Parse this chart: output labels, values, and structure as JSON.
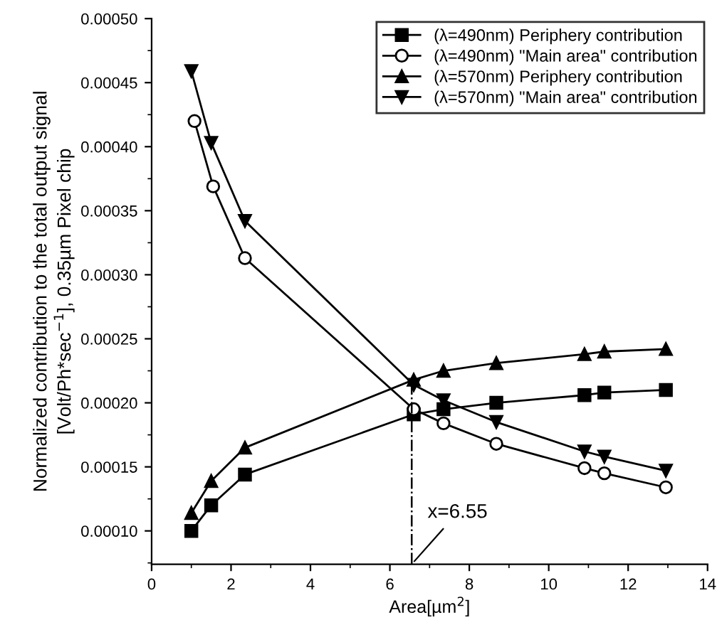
{
  "chart_data": {
    "type": "line",
    "xlabel": "Area[µm$^{2}$]",
    "ylabel": "Normalized contribution to the total output signal\n[Volt/Ph*sec$^{−1}$], 0.35µm Pixel chip",
    "x": [
      1.0,
      1.5,
      2.35,
      6.6,
      7.35,
      8.68,
      10.9,
      11.4,
      12.95
    ],
    "series": [
      {
        "name": "(λ=490nm) Periphery contribution",
        "color": "#000000",
        "marker": "square",
        "values": [
          0.0001,
          0.00012,
          0.000144,
          0.000191,
          0.000195,
          0.0002,
          0.000206,
          0.000208,
          0.00021
        ]
      },
      {
        "name": "(λ=490nm) \"Main area\" contribution",
        "color": "#000000",
        "marker": "circle",
        "x": [
          1.08,
          1.55,
          2.35,
          6.6,
          7.35,
          8.68,
          10.9,
          11.4,
          12.95
        ],
        "values": [
          0.00042,
          0.000369,
          0.000313,
          0.000195,
          0.000184,
          0.000168,
          0.000149,
          0.000145,
          0.000134
        ]
      },
      {
        "name": "(λ=570nm) Periphery contribution",
        "color": "#000000",
        "marker": "triangle",
        "values": [
          0.000114,
          0.000139,
          0.000165,
          0.000218,
          0.000225,
          0.000231,
          0.000238,
          0.00024,
          0.000242
        ]
      },
      {
        "name": "(λ=570nm) \"Main area\" contribution",
        "color": "#000000",
        "marker": "triangle_down",
        "values": [
          0.000459,
          0.000403,
          0.000342,
          0.000214,
          0.000202,
          0.000185,
          0.000162,
          0.000158,
          0.000147
        ]
      }
    ],
    "xlim": [
      0,
      14
    ],
    "xticks": [
      0,
      2,
      4,
      6,
      8,
      10,
      12,
      14
    ],
    "ylim": [
      7.4e-05,
      0.0005
    ],
    "yticks": [
      {
        "value": 0.0001,
        "label": "0.00010"
      },
      {
        "value": 0.00015,
        "label": "0.00015"
      },
      {
        "value": 0.0002,
        "label": "0.00020"
      },
      {
        "value": 0.00025,
        "label": "0.00025"
      },
      {
        "value": 0.0003,
        "label": "0.00030"
      },
      {
        "value": 0.00035,
        "label": "0.00035"
      },
      {
        "value": 0.0004,
        "label": "0.00040"
      },
      {
        "value": 0.00045,
        "label": "0.00045"
      },
      {
        "value": 0.0005,
        "label": "0.00050"
      }
    ],
    "ref_lines": [
      {
        "axis": "x",
        "value": 6.55,
        "label": "x=6.55",
        "line_style": "dashdot",
        "color": "#000000"
      }
    ],
    "legend": "top right",
    "grid": false,
    "line_style": "solid"
  }
}
